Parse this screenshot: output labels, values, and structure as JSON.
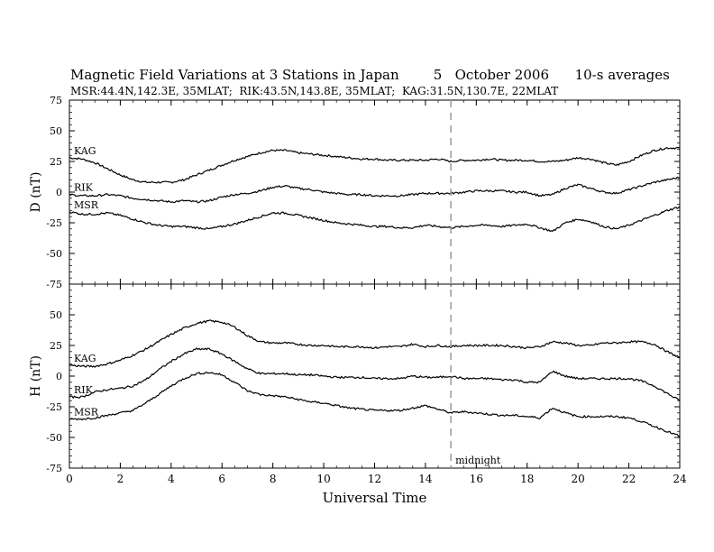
{
  "chart_data": {
    "type": "line",
    "title": "Magnetic Field Variations at 3 Stations in Japan        5   October 2006      10-s averages",
    "subtitle": "MSR:44.4N,142.3E, 35MLAT;  RIK:43.5N,143.8E, 35MLAT;  KAG:31.5N,130.7E, 22MLAT",
    "xlabel": "Universal Time",
    "xlim": [
      0,
      24
    ],
    "xticks": [
      "0",
      "2",
      "4",
      "6",
      "8",
      "10",
      "12",
      "14",
      "16",
      "18",
      "20",
      "22",
      "24"
    ],
    "midline": {
      "x": 15,
      "label": "midnight"
    },
    "panels": [
      {
        "ylabel": "D (nT)",
        "ylim": [
          -75,
          75
        ],
        "yticks": [
          "-75",
          "-50",
          "-25",
          "0",
          "25",
          "50",
          "75"
        ],
        "series": [
          {
            "name": "KAG",
            "x": [
              0,
              0.5,
              1,
              1.5,
              2,
              2.5,
              3,
              3.5,
              4,
              4.5,
              5,
              5.5,
              6,
              6.5,
              7,
              7.5,
              8,
              8.5,
              9,
              9.5,
              10,
              10.5,
              11,
              11.5,
              12,
              12.5,
              13,
              13.5,
              14,
              14.5,
              15,
              15.5,
              16,
              16.5,
              17,
              17.5,
              18,
              18.5,
              19,
              19.5,
              20,
              20.5,
              21,
              21.5,
              22,
              22.5,
              23,
              23.5,
              24
            ],
            "y": [
              28,
              27,
              24,
              19,
              14,
              10,
              8,
              8,
              8,
              10,
              14,
              18,
              22,
              26,
              29,
              32,
              34,
              34,
              32,
              31,
              30,
              29,
              28,
              27,
              27,
              26,
              26,
              26,
              26,
              27,
              25,
              26,
              26,
              27,
              26,
              26,
              26,
              25,
              25,
              26,
              28,
              27,
              24,
              22,
              25,
              30,
              34,
              36,
              36
            ]
          },
          {
            "name": "RIK",
            "x": [
              0,
              0.5,
              1,
              1.5,
              2,
              2.5,
              3,
              3.5,
              4,
              4.5,
              5,
              5.5,
              6,
              6.5,
              7,
              7.5,
              8,
              8.5,
              9,
              9.5,
              10,
              10.5,
              11,
              11.5,
              12,
              12.5,
              13,
              13.5,
              14,
              14.5,
              15,
              15.5,
              16,
              16.5,
              17,
              17.5,
              18,
              18.5,
              19,
              19.5,
              20,
              20.5,
              21,
              21.5,
              22,
              22.5,
              23,
              23.5,
              24
            ],
            "y": [
              -2,
              -3,
              -3,
              -2,
              -3,
              -5,
              -6,
              -7,
              -8,
              -7,
              -8,
              -7,
              -4,
              -2,
              -1,
              1,
              4,
              5,
              3,
              2,
              0,
              -1,
              -2,
              -2,
              -3,
              -3,
              -3,
              -2,
              -1,
              -1,
              -1,
              0,
              1,
              1,
              1,
              0,
              0,
              -3,
              -2,
              3,
              6,
              3,
              0,
              -1,
              2,
              5,
              8,
              10,
              12
            ]
          },
          {
            "name": "MSR",
            "x": [
              0,
              0.5,
              1,
              1.5,
              2,
              2.5,
              3,
              3.5,
              4,
              4.5,
              5,
              5.5,
              6,
              6.5,
              7,
              7.5,
              8,
              8.5,
              9,
              9.5,
              10,
              10.5,
              11,
              11.5,
              12,
              12.5,
              13,
              13.5,
              14,
              14.5,
              15,
              15.5,
              16,
              16.5,
              17,
              17.5,
              18,
              18.5,
              19,
              19.5,
              20,
              20.5,
              21,
              21.5,
              22,
              22.5,
              23,
              23.5,
              24
            ],
            "y": [
              -16,
              -18,
              -18,
              -17,
              -19,
              -22,
              -25,
              -27,
              -28,
              -28,
              -29,
              -30,
              -28,
              -26,
              -23,
              -20,
              -17,
              -17,
              -19,
              -21,
              -23,
              -25,
              -26,
              -27,
              -28,
              -28,
              -29,
              -29,
              -27,
              -28,
              -29,
              -28,
              -27,
              -27,
              -28,
              -27,
              -26,
              -29,
              -32,
              -25,
              -22,
              -24,
              -28,
              -30,
              -27,
              -23,
              -19,
              -15,
              -12
            ]
          }
        ]
      },
      {
        "ylabel": "H (nT)",
        "ylim": [
          -75,
          75
        ],
        "yticks": [
          "-75",
          "-50",
          "-25",
          "0",
          "25",
          "50",
          "75"
        ],
        "series": [
          {
            "name": "KAG",
            "x": [
              0,
              0.5,
              1,
              1.5,
              2,
              2.5,
              3,
              3.5,
              4,
              4.5,
              5,
              5.5,
              6,
              6.5,
              7,
              7.5,
              8,
              8.5,
              9,
              9.5,
              10,
              10.5,
              11,
              11.5,
              12,
              12.5,
              13,
              13.5,
              14,
              14.5,
              15,
              15.5,
              16,
              16.5,
              17,
              17.5,
              18,
              18.5,
              19,
              19.5,
              20,
              20.5,
              21,
              21.5,
              22,
              22.5,
              23,
              23.5,
              24
            ],
            "y": [
              9,
              8,
              8,
              10,
              13,
              17,
              22,
              28,
              34,
              39,
              43,
              45,
              44,
              40,
              33,
              28,
              27,
              27,
              26,
              25,
              25,
              24,
              24,
              24,
              23,
              24,
              24,
              26,
              24,
              25,
              24,
              25,
              25,
              25,
              25,
              24,
              23,
              24,
              28,
              27,
              25,
              25,
              27,
              27,
              28,
              28,
              26,
              20,
              15
            ]
          },
          {
            "name": "RIK",
            "x": [
              0,
              0.5,
              1,
              1.5,
              2,
              2.5,
              3,
              3.5,
              4,
              4.5,
              5,
              5.5,
              6,
              6.5,
              7,
              7.5,
              8,
              8.5,
              9,
              9.5,
              10,
              10.5,
              11,
              11.5,
              12,
              12.5,
              13,
              13.5,
              14,
              14.5,
              15,
              15.5,
              16,
              16.5,
              17,
              17.5,
              18,
              18.5,
              19,
              19.5,
              20,
              20.5,
              21,
              21.5,
              22,
              22.5,
              23,
              23.5,
              24
            ],
            "y": [
              -17,
              -17,
              -13,
              -11,
              -10,
              -8,
              -3,
              5,
              12,
              18,
              22,
              22,
              18,
              12,
              6,
              2,
              2,
              2,
              1,
              1,
              0,
              -1,
              -1,
              -1,
              -2,
              -2,
              -2,
              0,
              -1,
              -1,
              0,
              -2,
              -2,
              -2,
              -3,
              -3,
              -5,
              -5,
              4,
              0,
              -2,
              -2,
              -2,
              -2,
              -2,
              -4,
              -8,
              -14,
              -20
            ]
          },
          {
            "name": "MSR",
            "x": [
              0,
              0.5,
              1,
              1.5,
              2,
              2.5,
              3,
              3.5,
              4,
              4.5,
              5,
              5.5,
              6,
              6.5,
              7,
              7.5,
              8,
              8.5,
              9,
              9.5,
              10,
              10.5,
              11,
              11.5,
              12,
              12.5,
              13,
              13.5,
              14,
              14.5,
              15,
              15.5,
              16,
              16.5,
              17,
              17.5,
              18,
              18.5,
              19,
              19.5,
              20,
              20.5,
              21,
              21.5,
              22,
              22.5,
              23,
              23.5,
              24
            ],
            "y": [
              -35,
              -35,
              -34,
              -32,
              -30,
              -28,
              -22,
              -15,
              -8,
              -2,
              2,
              3,
              1,
              -5,
              -12,
              -15,
              -16,
              -17,
              -19,
              -21,
              -22,
              -24,
              -26,
              -27,
              -28,
              -28,
              -28,
              -26,
              -24,
              -27,
              -30,
              -29,
              -30,
              -31,
              -32,
              -32,
              -33,
              -34,
              -26,
              -30,
              -33,
              -33,
              -33,
              -33,
              -34,
              -37,
              -41,
              -45,
              -49
            ]
          }
        ]
      }
    ]
  }
}
